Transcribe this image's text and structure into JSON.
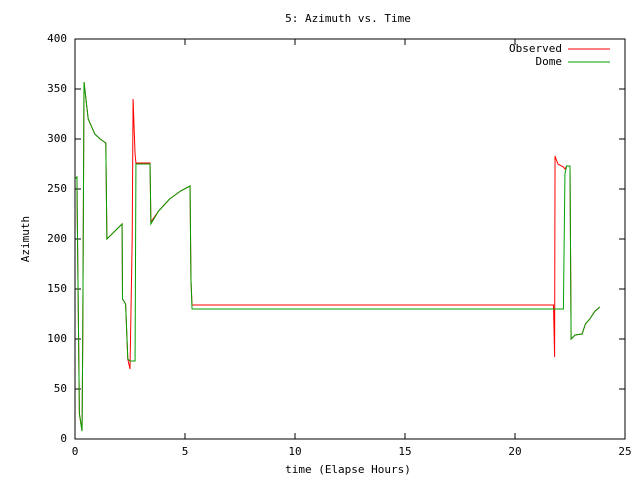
{
  "chart_data": {
    "type": "line",
    "title": "5: Azimuth vs. Time",
    "x_label": "time (Elapse Hours)",
    "y_label": "Azimuth",
    "x": [
      0,
      0.09,
      0.1,
      0.2,
      0.32,
      0.35,
      0.41,
      0.6,
      0.9,
      1.14,
      1.4,
      1.45,
      2.14,
      2.16,
      2.3,
      2.4,
      2.5,
      2.6,
      2.64,
      2.73,
      2.77,
      3.41,
      3.45,
      3.8,
      4.3,
      4.8,
      5.23,
      5.27,
      5.32,
      21.75,
      21.8,
      21.82,
      21.95,
      22.2,
      22.27,
      22.35,
      22.5,
      22.55,
      22.73,
      23.05,
      23.2,
      23.4,
      23.64,
      23.86
    ],
    "series": [
      {
        "name": "Observed",
        "color": "#ff0000",
        "values": [
          260,
          262,
          230,
          25,
          8,
          95,
          357,
          320,
          305,
          300,
          296,
          200,
          215,
          140,
          135,
          80,
          70,
          200,
          340,
          285,
          276,
          276,
          217,
          228,
          240,
          248,
          253,
          160,
          134,
          134,
          82,
          283,
          275,
          272,
          270,
          273,
          273,
          100,
          104,
          105,
          115,
          120,
          128,
          132
        ]
      },
      {
        "name": "Dome",
        "color": "#00a000",
        "values": [
          260,
          262,
          230,
          25,
          8,
          95,
          357,
          320,
          305,
          300,
          296,
          200,
          215,
          140,
          135,
          80,
          78,
          78,
          78,
          78,
          275,
          275,
          215,
          228,
          240,
          248,
          253,
          160,
          130,
          130,
          130,
          130,
          130,
          130,
          265,
          273,
          273,
          100,
          104,
          105,
          115,
          120,
          128,
          132
        ]
      }
    ],
    "xlim": [
      0,
      25
    ],
    "ylim": [
      0,
      400
    ],
    "xticks": [
      0,
      5,
      10,
      15,
      20,
      25
    ],
    "yticks": [
      0,
      50,
      100,
      150,
      200,
      250,
      300,
      350,
      400
    ],
    "legend": "top right",
    "grid": false
  }
}
